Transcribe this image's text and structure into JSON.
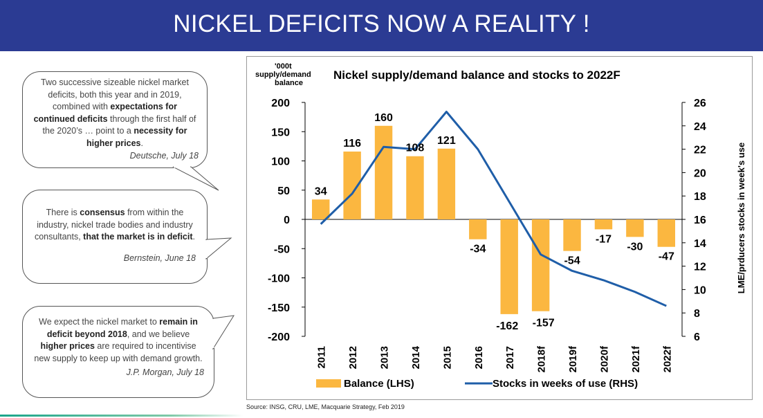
{
  "slide": {
    "title": "NICKEL DEFICITS NOW A REALITY !",
    "source": "Source: INSG, CRU, LME, Macquarie Strategy, Feb 2019"
  },
  "callouts": [
    {
      "segments": [
        {
          "t": "Two successive sizeable nickel market deficits, both this year and in 2019, combined with ",
          "b": false
        },
        {
          "t": "expectations for continued deficits",
          "b": true
        },
        {
          "t": " through the first half of the 2020’s … point to a ",
          "b": false
        },
        {
          "t": "necessity for higher prices",
          "b": true
        },
        {
          "t": ".",
          "b": false
        }
      ],
      "source": "Deutsche, July 18"
    },
    {
      "segments": [
        {
          "t": "There is ",
          "b": false
        },
        {
          "t": "consensus",
          "b": true
        },
        {
          "t": " from within the industry, nickel trade bodies and industry consultants, ",
          "b": false
        },
        {
          "t": "that the market is in deficit",
          "b": true
        },
        {
          "t": ".",
          "b": false
        }
      ],
      "source": "Bernstein, June 18"
    },
    {
      "segments": [
        {
          "t": "We expect the nickel market to ",
          "b": false
        },
        {
          "t": "remain in deficit beyond 2018",
          "b": true
        },
        {
          "t": ", and we believe ",
          "b": false
        },
        {
          "t": "higher prices",
          "b": true
        },
        {
          "t": " are required to incentivise new supply to keep up with demand growth.",
          "b": false
        }
      ],
      "source": "J.P. Morgan, July 18"
    }
  ],
  "chart_data": {
    "type": "bar",
    "title": "Nickel supply/demand balance and stocks to 2022F",
    "ylabel_left": "'000t supply/demand balance",
    "ylabel_right": "LME/prducers stocks in week's use",
    "categories": [
      "2011",
      "2012",
      "2013",
      "2014",
      "2015",
      "2016",
      "2017",
      "2018f",
      "2019f",
      "2020f",
      "2021f",
      "2022f"
    ],
    "ylim_left": [
      -200,
      200
    ],
    "yticks_left": [
      200,
      150,
      100,
      50,
      0,
      -50,
      -100,
      -150,
      -200
    ],
    "ylim_right": [
      6,
      26
    ],
    "yticks_right": [
      26,
      24,
      22,
      20,
      18,
      16,
      14,
      12,
      10,
      8,
      6
    ],
    "series": [
      {
        "name": "Balance (LHS)",
        "type": "bar",
        "axis": "left",
        "color": "#fbb740",
        "values": [
          34,
          116,
          160,
          108,
          121,
          -34,
          -162,
          -157,
          -54,
          -17,
          -30,
          -47
        ],
        "labels": [
          "34",
          "116",
          "160",
          "108",
          "121",
          "-34",
          "-162",
          "-157",
          "-54",
          "-17",
          "-30",
          "-47"
        ]
      },
      {
        "name": "Stocks in weeks of use (RHS)",
        "type": "line",
        "axis": "right",
        "color": "#1f5ea8",
        "values": [
          15.6,
          18.2,
          22.2,
          22.0,
          25.2,
          22.0,
          17.5,
          13.0,
          11.6,
          10.8,
          9.8,
          8.6
        ]
      }
    ],
    "legend_position": "bottom",
    "grid": false
  }
}
